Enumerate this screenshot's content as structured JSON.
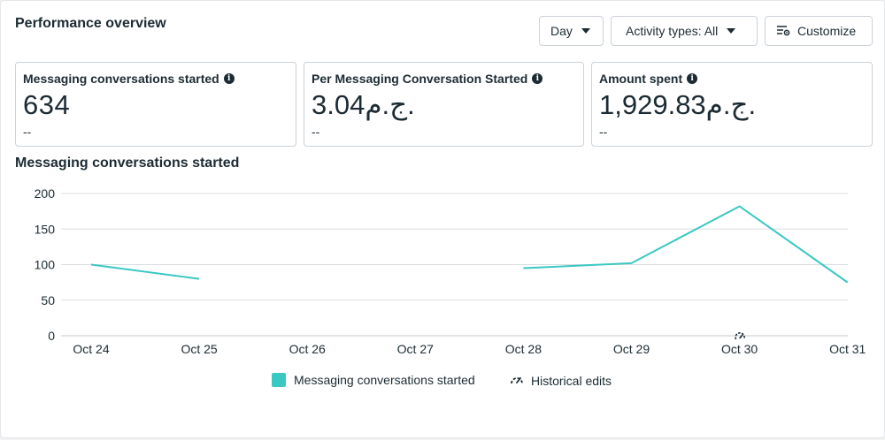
{
  "header": {
    "title": "Performance overview",
    "day_label": "Day",
    "activity_label": "Activity types: All",
    "customize_label": "Customize"
  },
  "cards": [
    {
      "label": "Messaging conversations started",
      "value": "634",
      "change": "--"
    },
    {
      "label": "Per Messaging Conversation Started",
      "value": "3.04ج.م.",
      "change": "--"
    },
    {
      "label": "Amount spent",
      "value": "1,929.83ج.م.",
      "change": "--"
    }
  ],
  "chart": {
    "title": "Messaging conversations started"
  },
  "chart_data": {
    "type": "line",
    "categories": [
      "Oct 24",
      "Oct 25",
      "Oct 26",
      "Oct 27",
      "Oct 28",
      "Oct 29",
      "Oct 30",
      "Oct 31"
    ],
    "series": [
      {
        "name": "Messaging conversations started",
        "values": [
          100,
          80,
          null,
          null,
          95,
          102,
          182,
          75
        ]
      }
    ],
    "yticks": [
      0,
      50,
      100,
      150,
      200
    ],
    "ylim": [
      0,
      200
    ],
    "grid": true,
    "legend_position": "bottom",
    "line_color": "#3ac8c3",
    "historical_edit_marker_category": "Oct 30"
  },
  "legend": {
    "series_label": "Messaging conversations started",
    "historical_label": "Historical edits"
  },
  "colors": {
    "accent": "#3ac8c3",
    "text": "#1c2b33",
    "grid": "#dadde1"
  },
  "icons": {
    "dropdown": "caret-down-icon",
    "customize": "sliders-gear-icon",
    "info": "info-icon",
    "historical": "gauge-edit-icon"
  }
}
